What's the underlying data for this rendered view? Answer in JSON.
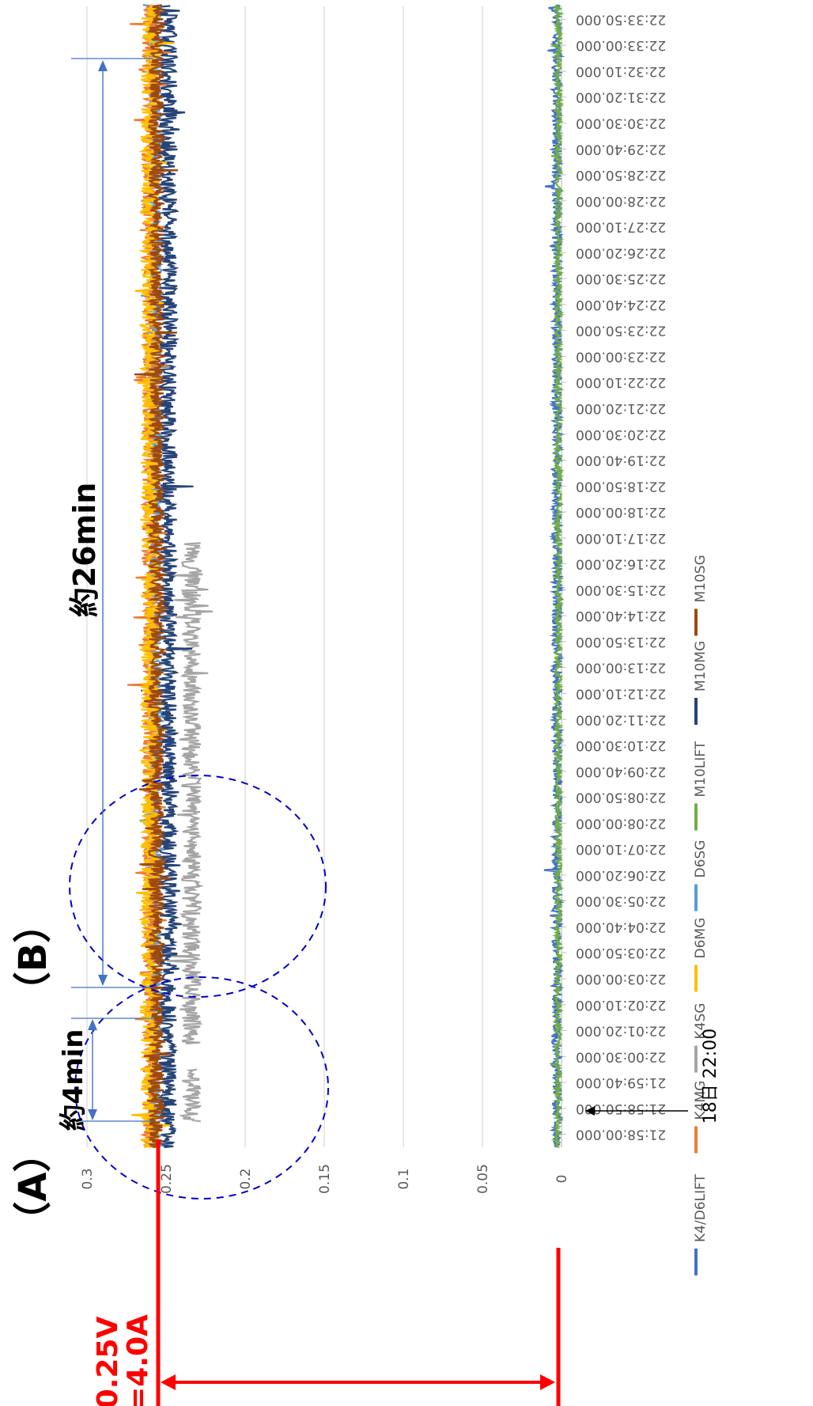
{
  "chart_data": {
    "type": "line",
    "orientation": "rotated-90-clockwise",
    "y_axis": {
      "ticks": [
        0,
        0.05,
        0.1,
        0.15,
        0.2,
        0.3
      ],
      "tick_labels": [
        "0",
        "0.05",
        "0.1",
        "0.15",
        "0.2",
        "0.3"
      ],
      "partial_label": "0.25",
      "ylim": [
        0,
        0.3
      ]
    },
    "x_axis": {
      "tick_labels": [
        "21:58:00.000",
        "21:58:50.000",
        "21:59:40.000",
        "22:00:30.000",
        "22:01:20.000",
        "22:02:10.000",
        "22:03:00.000",
        "22:03:50.000",
        "22:04:40.000",
        "22:05:30.000",
        "22:06:20.000",
        "22:07:10.000",
        "22:08:00.000",
        "22:08:50.000",
        "22:09:40.000",
        "22:10:30.000",
        "22:11:20.000",
        "22:12:10.000",
        "22:13:00.000",
        "22:13:50.000",
        "22:14:40.000",
        "22:15:30.000",
        "22:16:20.000",
        "22:17:10.000",
        "22:18:00.000",
        "22:18:50.000",
        "22:19:40.000",
        "22:20:30.000",
        "22:21:20.000",
        "22:22:10.000",
        "22:23:00.000",
        "22:23:50.000",
        "22:24:40.000",
        "22:25:30.000",
        "22:26:20.000",
        "22:27:10.000",
        "22:28:00.000",
        "22:28:50.000",
        "22:29:40.000",
        "22:30:30.000",
        "22:31:20.000",
        "22:32:10.000",
        "22:33:00.000",
        "22:33:50.000"
      ]
    },
    "series": [
      {
        "name": "K4/D6LIFT",
        "color": "#4472C4",
        "level": 0.003,
        "noise": 0.003
      },
      {
        "name": "K4MG",
        "color": "#ED7D31",
        "level": 0.26,
        "noise": 0.005
      },
      {
        "name": "K4SG",
        "color": "#A5A5A5",
        "level": 0.234,
        "noise": 0.006,
        "segments": [
          [
            0.5,
            2.5
          ],
          [
            3.5,
            22.8
          ]
        ]
      },
      {
        "name": "D6MG",
        "color": "#FFC000",
        "level": 0.26,
        "noise": 0.006
      },
      {
        "name": "D6SG",
        "color": "#5B9BD5",
        "level": 0.257,
        "noise": 0.004
      },
      {
        "name": "M10LIFT",
        "color": "#70AD47",
        "level": 0.002,
        "noise": 0.002
      },
      {
        "name": "M10MG",
        "color": "#264478",
        "level": 0.249,
        "noise": 0.006
      },
      {
        "name": "M10SG",
        "color": "#9E480E",
        "level": 0.256,
        "noise": 0.005
      }
    ],
    "legend": {
      "position": "bottom"
    }
  },
  "annotations": {
    "label_a": "（A）",
    "label_b": "（B）",
    "approx_4min": "約4min",
    "approx_26min": "約26min",
    "voltage": "0.25V",
    "current": "=4.0A",
    "time_marker": "18日 22:00"
  },
  "colors": {
    "annotation_red": "#FF0000",
    "dashed_circle": "#0000CC",
    "dimension_line": "#4472C4",
    "gridline": "#D9D9D9",
    "axis_text": "#595959"
  }
}
